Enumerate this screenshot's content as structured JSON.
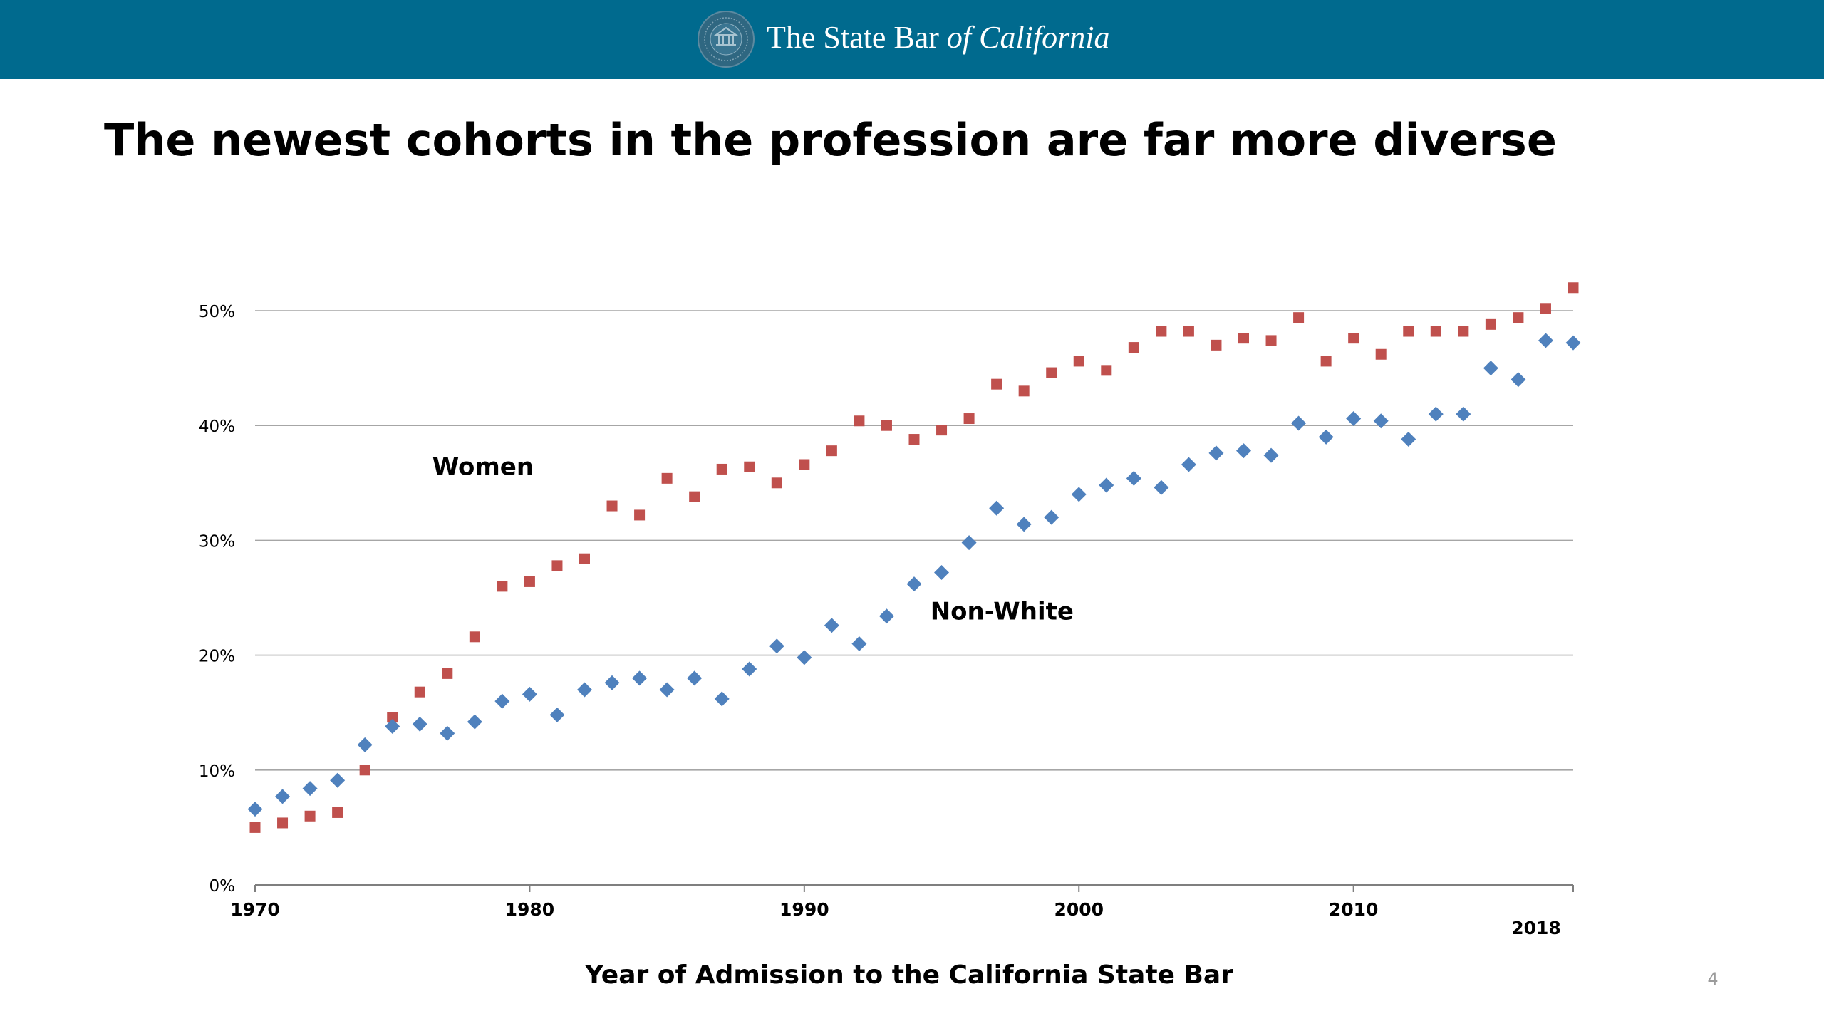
{
  "header": {
    "brand_prefix": "The State Bar",
    "brand_italic": "of California",
    "background_color": "#006a8e",
    "seal_icon": "state-bar-seal-icon"
  },
  "slide": {
    "title": "The newest cohorts in the profession are far more diverse",
    "page_number": "4"
  },
  "chart_data": {
    "type": "scatter",
    "xlabel": "Year of Admission to the California State Bar",
    "ylabel": "",
    "xlim": [
      1970,
      2018
    ],
    "ylim": [
      0,
      0.5
    ],
    "x_ticks": [
      {
        "value": 1970,
        "label": "1970"
      },
      {
        "value": 1980,
        "label": "1980"
      },
      {
        "value": 1990,
        "label": "1990"
      },
      {
        "value": 2000,
        "label": "2000"
      },
      {
        "value": 2010,
        "label": "2010"
      }
    ],
    "x_extra_tick": {
      "value": 2018,
      "label": "2018"
    },
    "y_ticks": [
      {
        "value": 0.0,
        "label": "0%"
      },
      {
        "value": 0.1,
        "label": "10%"
      },
      {
        "value": 0.2,
        "label": "20%"
      },
      {
        "value": 0.3,
        "label": "30%"
      },
      {
        "value": 0.4,
        "label": "40%"
      },
      {
        "value": 0.5,
        "label": "50%"
      }
    ],
    "grid": true,
    "series": [
      {
        "name": "Women",
        "color": "#c0504d",
        "marker": "square",
        "label_anchor": {
          "x": 1978.3,
          "y": 0.357
        },
        "points": [
          [
            1970,
            0.05
          ],
          [
            1971,
            0.054
          ],
          [
            1972,
            0.06
          ],
          [
            1973,
            0.063
          ],
          [
            1974,
            0.1
          ],
          [
            1975,
            0.146
          ],
          [
            1976,
            0.168
          ],
          [
            1977,
            0.184
          ],
          [
            1978,
            0.216
          ],
          [
            1979,
            0.26
          ],
          [
            1980,
            0.264
          ],
          [
            1981,
            0.278
          ],
          [
            1982,
            0.284
          ],
          [
            1983,
            0.33
          ],
          [
            1984,
            0.322
          ],
          [
            1985,
            0.354
          ],
          [
            1986,
            0.338
          ],
          [
            1987,
            0.362
          ],
          [
            1988,
            0.364
          ],
          [
            1989,
            0.35
          ],
          [
            1990,
            0.366
          ],
          [
            1991,
            0.378
          ],
          [
            1992,
            0.404
          ],
          [
            1993,
            0.4
          ],
          [
            1994,
            0.388
          ],
          [
            1995,
            0.396
          ],
          [
            1996,
            0.406
          ],
          [
            1997,
            0.436
          ],
          [
            1998,
            0.43
          ],
          [
            1999,
            0.446
          ],
          [
            2000,
            0.456
          ],
          [
            2001,
            0.448
          ],
          [
            2002,
            0.468
          ],
          [
            2003,
            0.482
          ],
          [
            2004,
            0.482
          ],
          [
            2005,
            0.47
          ],
          [
            2006,
            0.476
          ],
          [
            2007,
            0.474
          ],
          [
            2008,
            0.494
          ],
          [
            2009,
            0.456
          ],
          [
            2010,
            0.476
          ],
          [
            2011,
            0.462
          ],
          [
            2012,
            0.482
          ],
          [
            2013,
            0.482
          ],
          [
            2014,
            0.482
          ],
          [
            2015,
            0.488
          ],
          [
            2016,
            0.494
          ],
          [
            2017,
            0.502
          ],
          [
            2018,
            0.52
          ]
        ]
      },
      {
        "name": "Non-White",
        "color": "#4f81bd",
        "marker": "diamond",
        "label_anchor": {
          "x": 1997.2,
          "y": 0.231
        },
        "points": [
          [
            1970,
            0.066
          ],
          [
            1971,
            0.077
          ],
          [
            1972,
            0.084
          ],
          [
            1973,
            0.091
          ],
          [
            1974,
            0.122
          ],
          [
            1975,
            0.138
          ],
          [
            1976,
            0.14
          ],
          [
            1977,
            0.132
          ],
          [
            1978,
            0.142
          ],
          [
            1979,
            0.16
          ],
          [
            1980,
            0.166
          ],
          [
            1981,
            0.148
          ],
          [
            1982,
            0.17
          ],
          [
            1983,
            0.176
          ],
          [
            1984,
            0.18
          ],
          [
            1985,
            0.17
          ],
          [
            1986,
            0.18
          ],
          [
            1987,
            0.162
          ],
          [
            1988,
            0.188
          ],
          [
            1989,
            0.208
          ],
          [
            1990,
            0.198
          ],
          [
            1991,
            0.226
          ],
          [
            1992,
            0.21
          ],
          [
            1993,
            0.234
          ],
          [
            1994,
            0.262
          ],
          [
            1995,
            0.272
          ],
          [
            1996,
            0.298
          ],
          [
            1997,
            0.328
          ],
          [
            1998,
            0.314
          ],
          [
            1999,
            0.32
          ],
          [
            2000,
            0.34
          ],
          [
            2001,
            0.348
          ],
          [
            2002,
            0.354
          ],
          [
            2003,
            0.346
          ],
          [
            2004,
            0.366
          ],
          [
            2005,
            0.376
          ],
          [
            2006,
            0.378
          ],
          [
            2007,
            0.374
          ],
          [
            2008,
            0.402
          ],
          [
            2009,
            0.39
          ],
          [
            2010,
            0.406
          ],
          [
            2011,
            0.404
          ],
          [
            2012,
            0.388
          ],
          [
            2013,
            0.41
          ],
          [
            2014,
            0.41
          ],
          [
            2015,
            0.45
          ],
          [
            2016,
            0.44
          ],
          [
            2017,
            0.474
          ],
          [
            2018,
            0.472
          ]
        ]
      }
    ]
  }
}
